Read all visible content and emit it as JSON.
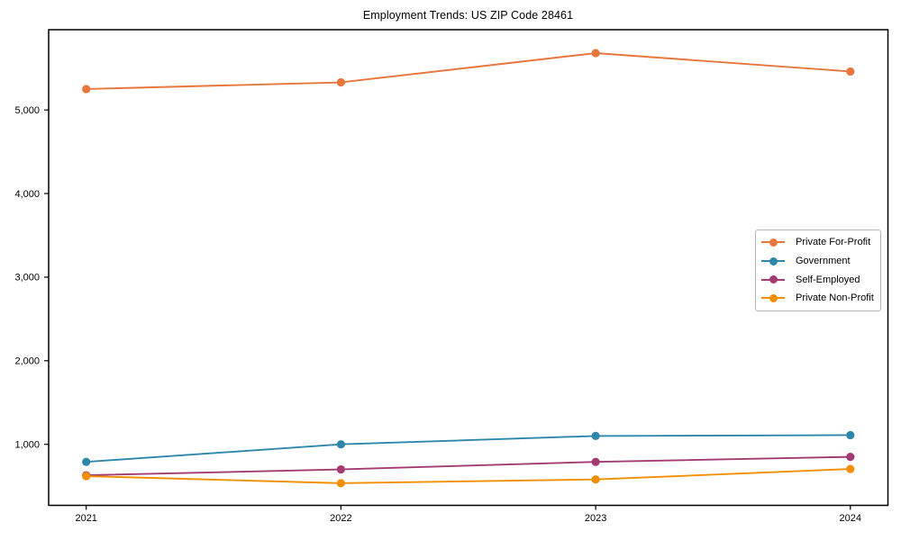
{
  "chart_data": {
    "type": "line",
    "title": "Employment Trends: US ZIP Code 28461",
    "categories": [
      "2021",
      "2022",
      "2023",
      "2024"
    ],
    "series": [
      {
        "name": "Private For-Profit",
        "color": "#E8763C",
        "values": [
          5250,
          5330,
          5680,
          5460
        ]
      },
      {
        "name": "Government",
        "color": "#2E86AB",
        "values": [
          790,
          1000,
          1100,
          1110
        ]
      },
      {
        "name": "Self-Employed",
        "color": "#A23B72",
        "values": [
          630,
          700,
          790,
          850
        ]
      },
      {
        "name": "Private Non-Profit",
        "color": "#F18F01",
        "values": [
          620,
          535,
          580,
          705
        ]
      }
    ],
    "xlabel": "",
    "ylabel": "",
    "ylim": [
      270,
      5960
    ],
    "yticks": [
      1000,
      2000,
      3000,
      4000,
      5000
    ],
    "ytick_labels": [
      "1,000",
      "2,000",
      "3,000",
      "4,000",
      "5,000"
    ],
    "grid": false,
    "legend_position": "center-right",
    "marker": "circle",
    "frame_color": "#000000",
    "background": "#ffffff"
  }
}
